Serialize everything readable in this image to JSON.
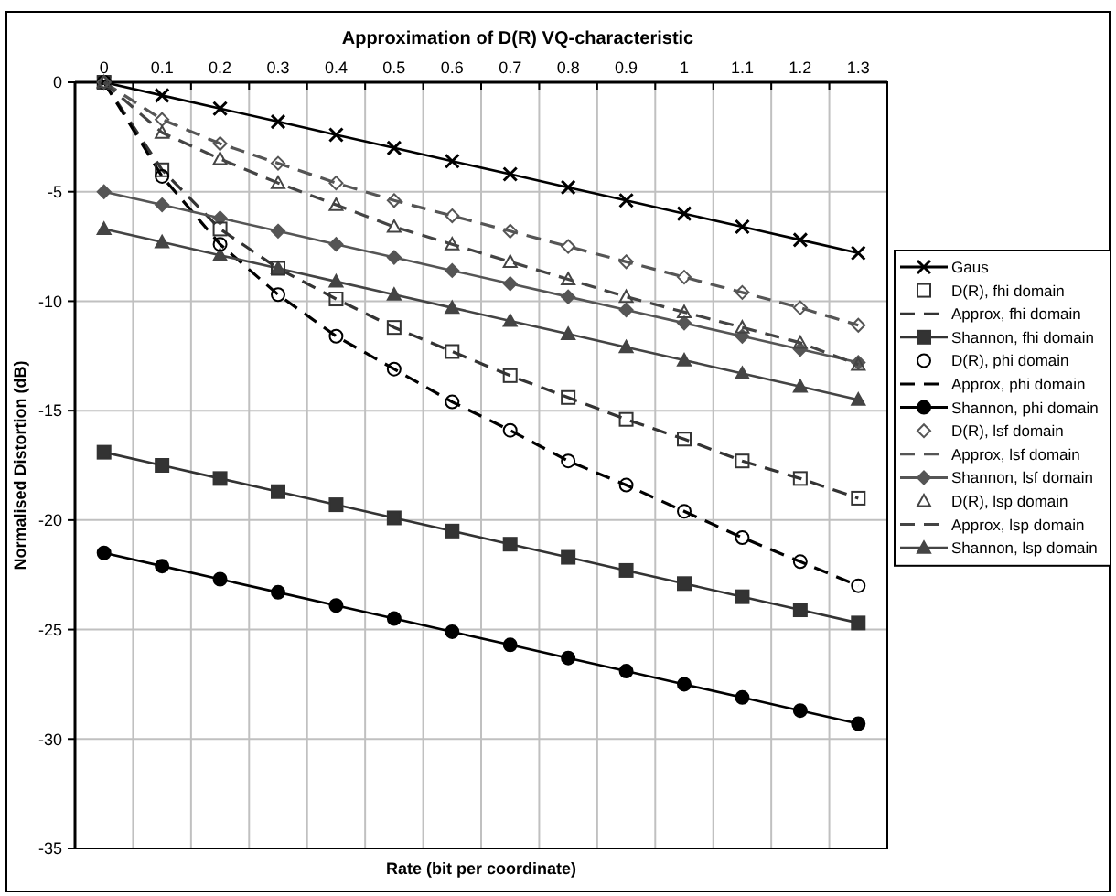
{
  "chart_data": {
    "type": "line",
    "title": "Approximation of D(R) VQ-characteristic",
    "xlabel": "Rate (bit per coordinate)",
    "ylabel": "Normalised Distortion (dB)",
    "categories": [
      "0",
      "0.1",
      "0.2",
      "0.3",
      "0.4",
      "0.5",
      "0.6",
      "0.7",
      "0.8",
      "0.9",
      "1",
      "1.1",
      "1.2",
      "1.3"
    ],
    "ylim": [
      -35,
      0
    ],
    "yticks": [
      -35,
      -30,
      -25,
      -20,
      -15,
      -10,
      -5,
      0
    ],
    "grid": true,
    "legend": "right",
    "series": [
      {
        "name": "Gaus",
        "marker": "cross",
        "line_style": "solid",
        "color": "#000000",
        "values": [
          0,
          -0.6,
          -1.2,
          -1.8,
          -2.4,
          -3.0,
          -3.6,
          -4.2,
          -4.8,
          -5.4,
          -6.0,
          -6.6,
          -7.2,
          -7.8
        ]
      },
      {
        "name": "D(R), fhi domain",
        "type": "scatter",
        "marker": "square",
        "color": "#333333",
        "values": [
          0,
          -4.0,
          -6.7,
          -8.5,
          -9.9,
          -11.2,
          -12.3,
          -13.4,
          -14.4,
          -15.4,
          -16.3,
          -17.3,
          -18.1,
          -19.0
        ]
      },
      {
        "name": "Approx, fhi domain",
        "marker": "none",
        "line_style": "dashed",
        "color": "#333333",
        "values": [
          0,
          -4.0,
          -6.7,
          -8.5,
          -9.9,
          -11.2,
          -12.3,
          -13.4,
          -14.4,
          -15.4,
          -16.3,
          -17.3,
          -18.1,
          -19.0
        ]
      },
      {
        "name": "Shannon, fhi domain",
        "marker": "square",
        "line_style": "solid",
        "color": "#333333",
        "values": [
          -16.9,
          -17.5,
          -18.1,
          -18.7,
          -19.3,
          -19.9,
          -20.5,
          -21.1,
          -21.7,
          -22.3,
          -22.9,
          -23.5,
          -24.1,
          -24.7
        ]
      },
      {
        "name": "D(R), phi domain",
        "type": "scatter",
        "marker": "circle",
        "color": "#000000",
        "values": [
          0,
          -4.3,
          -7.4,
          -9.7,
          -11.6,
          -13.1,
          -14.6,
          -15.9,
          -17.3,
          -18.4,
          -19.6,
          -20.8,
          -21.9,
          -23.0
        ]
      },
      {
        "name": "Approx, phi domain",
        "marker": "none",
        "line_style": "dashed",
        "color": "#000000",
        "values": [
          0,
          -4.3,
          -7.4,
          -9.7,
          -11.6,
          -13.1,
          -14.6,
          -15.9,
          -17.3,
          -18.4,
          -19.6,
          -20.8,
          -21.9,
          -23.0
        ]
      },
      {
        "name": "Shannon, phi domain",
        "marker": "circle",
        "line_style": "solid",
        "color": "#000000",
        "values": [
          -21.5,
          -22.1,
          -22.7,
          -23.3,
          -23.9,
          -24.5,
          -25.1,
          -25.7,
          -26.3,
          -26.9,
          -27.5,
          -28.1,
          -28.7,
          -29.3
        ]
      },
      {
        "name": "D(R), lsf domain",
        "type": "scatter",
        "marker": "diamond",
        "color": "#555555",
        "values": [
          0,
          -1.7,
          -2.8,
          -3.7,
          -4.6,
          -5.4,
          -6.1,
          -6.8,
          -7.5,
          -8.2,
          -8.9,
          -9.6,
          -10.3,
          -11.1
        ]
      },
      {
        "name": "Approx, lsf domain",
        "marker": "none",
        "line_style": "dashed",
        "color": "#555555",
        "values": [
          0,
          -1.7,
          -2.8,
          -3.7,
          -4.6,
          -5.4,
          -6.1,
          -6.8,
          -7.5,
          -8.2,
          -8.9,
          -9.6,
          -10.3,
          -11.1
        ]
      },
      {
        "name": "Shannon, lsf domain",
        "marker": "diamond",
        "line_style": "solid",
        "color": "#555555",
        "values": [
          -5.0,
          -5.6,
          -6.2,
          -6.8,
          -7.4,
          -8.0,
          -8.6,
          -9.2,
          -9.8,
          -10.4,
          -11.0,
          -11.6,
          -12.2,
          -12.8
        ]
      },
      {
        "name": "D(R), lsp domain",
        "type": "scatter",
        "marker": "triangle",
        "color": "#444444",
        "values": [
          0,
          -2.3,
          -3.5,
          -4.6,
          -5.6,
          -6.6,
          -7.4,
          -8.2,
          -9.0,
          -9.8,
          -10.5,
          -11.2,
          -11.9,
          -12.9
        ]
      },
      {
        "name": "Approx, lsp domain",
        "marker": "none",
        "line_style": "dashed",
        "color": "#444444",
        "values": [
          0,
          -2.3,
          -3.5,
          -4.6,
          -5.6,
          -6.6,
          -7.4,
          -8.2,
          -9.0,
          -9.8,
          -10.5,
          -11.2,
          -11.9,
          -12.9
        ]
      },
      {
        "name": "Shannon, lsp domain",
        "marker": "triangle",
        "line_style": "solid",
        "color": "#444444",
        "values": [
          -6.7,
          -7.3,
          -7.9,
          -8.5,
          -9.1,
          -9.7,
          -10.3,
          -10.9,
          -11.5,
          -12.1,
          -12.7,
          -13.3,
          -13.9,
          -14.5
        ]
      }
    ]
  }
}
